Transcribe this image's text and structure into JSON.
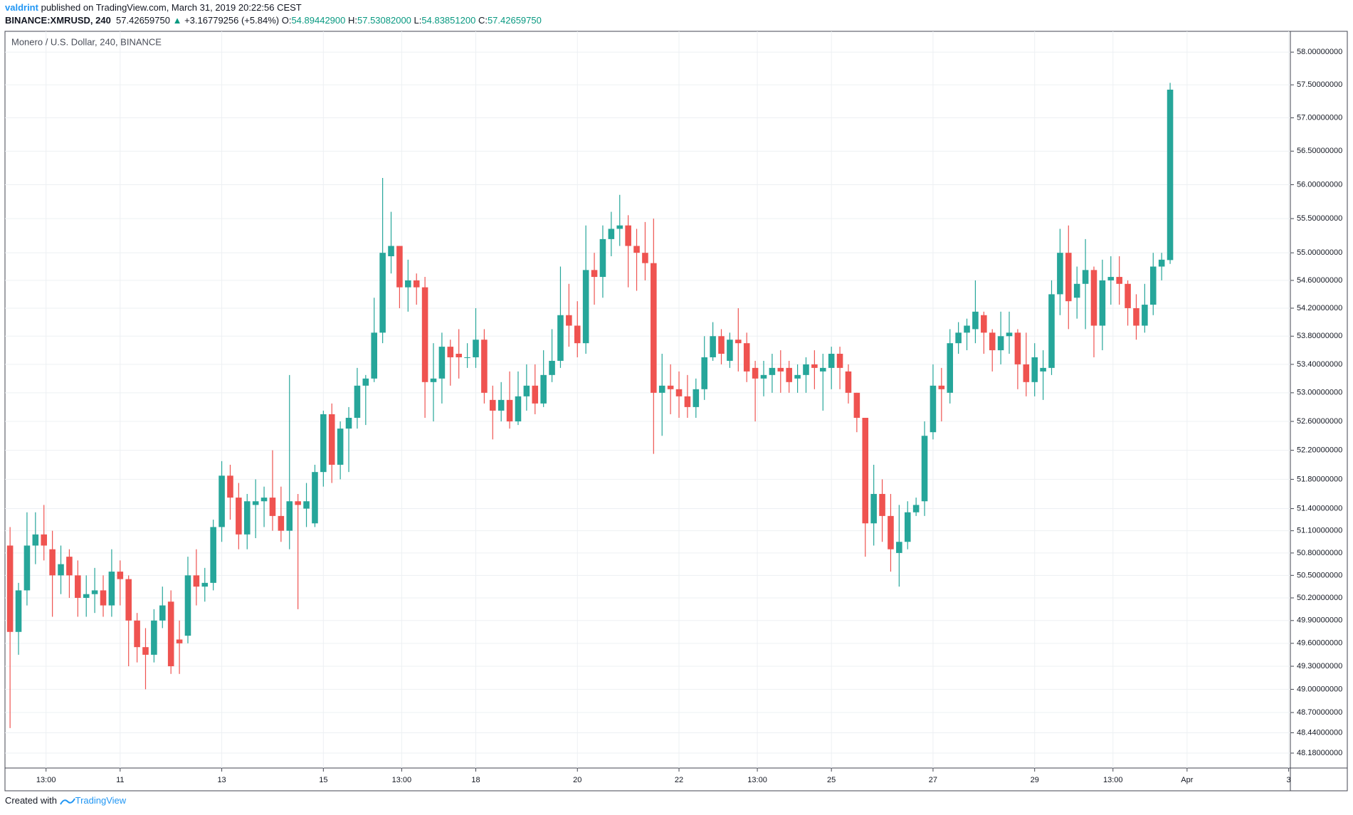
{
  "header": {
    "author": "valdrint",
    "published": "published on TradingView.com, March 31, 2019 20:22:56 CEST",
    "symbol": "BINANCE:XMRUSD, 240",
    "price": "57.42659750",
    "arrow": "▲",
    "change": "+3.16779256 (+5.84%)",
    "ohlc": [
      {
        "key": "O:",
        "value": "54.89442900"
      },
      {
        "key": "H:",
        "value": "57.53082000"
      },
      {
        "key": "L:",
        "value": "54.83851200"
      },
      {
        "key": "C:",
        "value": "57.42659750"
      }
    ]
  },
  "chart_data": {
    "type": "candlestick",
    "title": "Monero / U.S. Dollar, 240, BINANCE",
    "up_color": "#26a69a",
    "down_color": "#ef5350",
    "log": true,
    "grid": true,
    "open": [
      50.9,
      49.75,
      50.3,
      50.9,
      51.05,
      50.85,
      50.5,
      50.75,
      50.5,
      50.2,
      50.25,
      50.3,
      50.1,
      50.55,
      50.45,
      49.9,
      49.55,
      49.45,
      49.9,
      50.15,
      49.65,
      49.7,
      50.5,
      50.35,
      50.4,
      51.15,
      51.85,
      51.55,
      51.05,
      51.45,
      51.5,
      51.55,
      51.3,
      51.1,
      51.5,
      51.4,
      51.2,
      51.9,
      52.7,
      52.0,
      52.5,
      52.65,
      53.1,
      53.2,
      53.85,
      54.95,
      55.1,
      54.5,
      54.6,
      54.5,
      53.15,
      53.2,
      53.65,
      53.55,
      53.5,
      53.5,
      53.75,
      52.9,
      52.75,
      52.9,
      52.6,
      52.95,
      53.1,
      52.85,
      53.25,
      53.45,
      54.1,
      53.95,
      53.7,
      54.75,
      54.65,
      55.2,
      55.35,
      55.4,
      55.1,
      55.0,
      54.85,
      53.0,
      53.1,
      53.05,
      52.95,
      52.8,
      53.05,
      53.5,
      53.8,
      53.45,
      53.75,
      53.7,
      53.35,
      53.2,
      53.25,
      53.35,
      53.35,
      53.2,
      53.25,
      53.4,
      53.3,
      53.35,
      53.55,
      53.3,
      53.0,
      52.65,
      51.2,
      51.6,
      51.3,
      50.8,
      50.95,
      51.35,
      51.5,
      52.45,
      53.1,
      53.0,
      53.7,
      53.85,
      53.9,
      54.1,
      53.85,
      53.6,
      53.8,
      53.85,
      53.4,
      53.15,
      53.3,
      53.35,
      54.4,
      55.0,
      54.35,
      54.55,
      54.75,
      53.95,
      54.6,
      54.65,
      54.55,
      54.2,
      53.95,
      54.25,
      54.8,
      54.894429
    ],
    "high": [
      51.15,
      50.4,
      51.35,
      51.35,
      51.45,
      51.1,
      50.9,
      50.85,
      50.7,
      50.5,
      50.6,
      50.5,
      50.85,
      50.7,
      50.5,
      50.0,
      49.8,
      50.05,
      50.35,
      50.3,
      49.9,
      50.75,
      50.85,
      50.6,
      51.25,
      52.05,
      52.0,
      51.75,
      51.6,
      51.8,
      51.7,
      52.2,
      51.7,
      53.25,
      51.6,
      51.75,
      52.0,
      52.75,
      52.85,
      52.6,
      52.8,
      53.35,
      53.25,
      54.35,
      56.1,
      55.6,
      55.1,
      54.9,
      54.7,
      54.65,
      53.7,
      53.85,
      53.75,
      53.9,
      53.7,
      54.2,
      53.9,
      53.1,
      53.15,
      53.3,
      53.3,
      53.4,
      53.4,
      53.6,
      53.9,
      54.8,
      54.55,
      54.3,
      55.4,
      55.0,
      55.4,
      55.6,
      55.85,
      55.55,
      55.35,
      55.45,
      55.5,
      53.55,
      53.4,
      53.3,
      53.25,
      53.2,
      53.8,
      54.0,
      53.9,
      53.85,
      54.2,
      53.85,
      53.45,
      53.45,
      53.55,
      53.6,
      53.45,
      53.4,
      53.5,
      53.6,
      53.55,
      53.65,
      53.65,
      53.4,
      53.0,
      52.65,
      52.0,
      51.8,
      51.6,
      51.45,
      51.5,
      51.55,
      52.6,
      53.4,
      53.35,
      53.9,
      54.0,
      54.05,
      54.6,
      54.15,
      53.9,
      54.15,
      54.15,
      53.9,
      53.85,
      53.7,
      53.6,
      54.6,
      55.35,
      55.4,
      54.8,
      55.2,
      54.8,
      54.9,
      54.95,
      54.95,
      54.6,
      54.4,
      54.55,
      55.0,
      55.0,
      57.53082
    ],
    "low": [
      48.5,
      49.45,
      50.1,
      50.65,
      50.7,
      49.95,
      50.25,
      50.2,
      49.95,
      49.95,
      50.0,
      49.95,
      49.95,
      50.1,
      49.3,
      49.35,
      49.0,
      49.35,
      49.8,
      49.2,
      49.2,
      49.6,
      50.1,
      50.15,
      50.3,
      50.95,
      51.25,
      50.85,
      50.85,
      51.0,
      51.15,
      51.1,
      50.95,
      50.85,
      50.05,
      51.15,
      51.15,
      51.7,
      51.75,
      51.8,
      51.9,
      52.5,
      52.55,
      53.15,
      53.7,
      54.7,
      54.2,
      54.15,
      54.25,
      52.65,
      52.6,
      52.85,
      53.1,
      53.2,
      53.35,
      53.35,
      52.85,
      52.35,
      52.6,
      52.5,
      52.55,
      52.75,
      52.7,
      52.8,
      53.15,
      53.35,
      53.65,
      53.5,
      53.55,
      54.25,
      54.35,
      54.95,
      55.1,
      54.5,
      54.45,
      54.6,
      52.15,
      52.4,
      52.7,
      52.65,
      52.65,
      52.65,
      52.9,
      53.45,
      53.4,
      53.35,
      53.3,
      53.15,
      52.6,
      52.95,
      53.0,
      53.0,
      53.0,
      53.0,
      53.0,
      53.05,
      52.75,
      53.05,
      53.05,
      52.85,
      52.45,
      50.75,
      50.9,
      50.95,
      50.55,
      50.35,
      50.85,
      51.3,
      51.3,
      52.35,
      52.6,
      52.85,
      53.55,
      53.6,
      53.7,
      53.55,
      53.3,
      53.4,
      53.55,
      53.05,
      52.95,
      52.95,
      52.9,
      53.25,
      54.1,
      53.9,
      54.05,
      53.9,
      53.5,
      53.6,
      54.25,
      54.25,
      53.95,
      53.75,
      53.85,
      54.1,
      54.6,
      54.838512
    ],
    "close": [
      49.75,
      50.3,
      50.9,
      51.05,
      50.9,
      50.5,
      50.65,
      50.5,
      50.2,
      50.25,
      50.3,
      50.1,
      50.55,
      50.45,
      49.9,
      49.55,
      49.45,
      49.9,
      50.1,
      49.3,
      49.6,
      50.5,
      50.35,
      50.4,
      51.15,
      51.85,
      51.55,
      51.05,
      51.5,
      51.5,
      51.55,
      51.3,
      51.1,
      51.5,
      51.45,
      51.5,
      51.9,
      52.7,
      52.0,
      52.5,
      52.65,
      53.1,
      53.2,
      53.85,
      55.0,
      55.1,
      54.5,
      54.6,
      54.5,
      53.15,
      53.2,
      53.65,
      53.5,
      53.5,
      53.5,
      53.75,
      53.0,
      52.75,
      52.9,
      52.6,
      52.95,
      53.1,
      52.85,
      53.25,
      53.45,
      54.1,
      53.95,
      53.7,
      54.75,
      54.65,
      55.2,
      55.35,
      55.4,
      55.1,
      55.0,
      54.85,
      53.0,
      53.1,
      53.05,
      52.95,
      52.8,
      53.05,
      53.5,
      53.8,
      53.55,
      53.75,
      53.7,
      53.3,
      53.2,
      53.25,
      53.35,
      53.3,
      53.15,
      53.25,
      53.4,
      53.35,
      53.35,
      53.55,
      53.35,
      53.0,
      52.65,
      51.2,
      51.6,
      51.3,
      50.85,
      50.95,
      51.35,
      51.45,
      52.4,
      53.1,
      53.05,
      53.7,
      53.85,
      53.95,
      54.15,
      53.85,
      53.6,
      53.8,
      53.85,
      53.4,
      53.15,
      53.5,
      53.35,
      54.4,
      55.0,
      54.3,
      54.55,
      54.75,
      53.95,
      54.6,
      54.65,
      54.55,
      54.2,
      53.95,
      54.25,
      54.8,
      54.9,
      57.4265975
    ],
    "xlim": [
      -0.6,
      151.2
    ],
    "xticks": [
      {
        "value": 4.25,
        "label": "13:00"
      },
      {
        "value": 13,
        "label": "11"
      },
      {
        "value": 25,
        "label": "13"
      },
      {
        "value": 37,
        "label": "15"
      },
      {
        "value": 46.25,
        "label": "13:00"
      },
      {
        "value": 55,
        "label": "18"
      },
      {
        "value": 67,
        "label": "20"
      },
      {
        "value": 79,
        "label": "22"
      },
      {
        "value": 88.25,
        "label": "13:00"
      },
      {
        "value": 97,
        "label": "25"
      },
      {
        "value": 109,
        "label": "27"
      },
      {
        "value": 121,
        "label": "29"
      },
      {
        "value": 130.25,
        "label": "13:00"
      },
      {
        "value": 139,
        "label": "Apr"
      },
      {
        "value": 151,
        "label": "3"
      }
    ],
    "ylim": [
      47.99,
      58.32
    ],
    "yticks": [
      {
        "value": 58,
        "label": "58.00000000"
      },
      {
        "value": 57.5,
        "label": "57.50000000"
      },
      {
        "value": 57,
        "label": "57.00000000"
      },
      {
        "value": 56.5,
        "label": "56.50000000"
      },
      {
        "value": 56,
        "label": "56.00000000"
      },
      {
        "value": 55.5,
        "label": "55.50000000"
      },
      {
        "value": 55,
        "label": "55.00000000"
      },
      {
        "value": 54.6,
        "label": "54.60000000"
      },
      {
        "value": 54.2,
        "label": "54.20000000"
      },
      {
        "value": 53.8,
        "label": "53.80000000"
      },
      {
        "value": 53.4,
        "label": "53.40000000"
      },
      {
        "value": 53,
        "label": "53.00000000"
      },
      {
        "value": 52.6,
        "label": "52.60000000"
      },
      {
        "value": 52.2,
        "label": "52.20000000"
      },
      {
        "value": 51.8,
        "label": "51.80000000"
      },
      {
        "value": 51.4,
        "label": "51.40000000"
      },
      {
        "value": 51.1,
        "label": "51.10000000"
      },
      {
        "value": 50.8,
        "label": "50.80000000"
      },
      {
        "value": 50.5,
        "label": "50.50000000"
      },
      {
        "value": 50.2,
        "label": "50.20000000"
      },
      {
        "value": 49.9,
        "label": "49.90000000"
      },
      {
        "value": 49.6,
        "label": "49.60000000"
      },
      {
        "value": 49.3,
        "label": "49.30000000"
      },
      {
        "value": 49,
        "label": "49.00000000"
      },
      {
        "value": 48.7,
        "label": "48.70000000"
      },
      {
        "value": 48.44,
        "label": "48.44000000"
      },
      {
        "value": 48.18,
        "label": "48.18000000"
      }
    ]
  },
  "footer": {
    "text": "Created with",
    "brand": "TradingView"
  }
}
